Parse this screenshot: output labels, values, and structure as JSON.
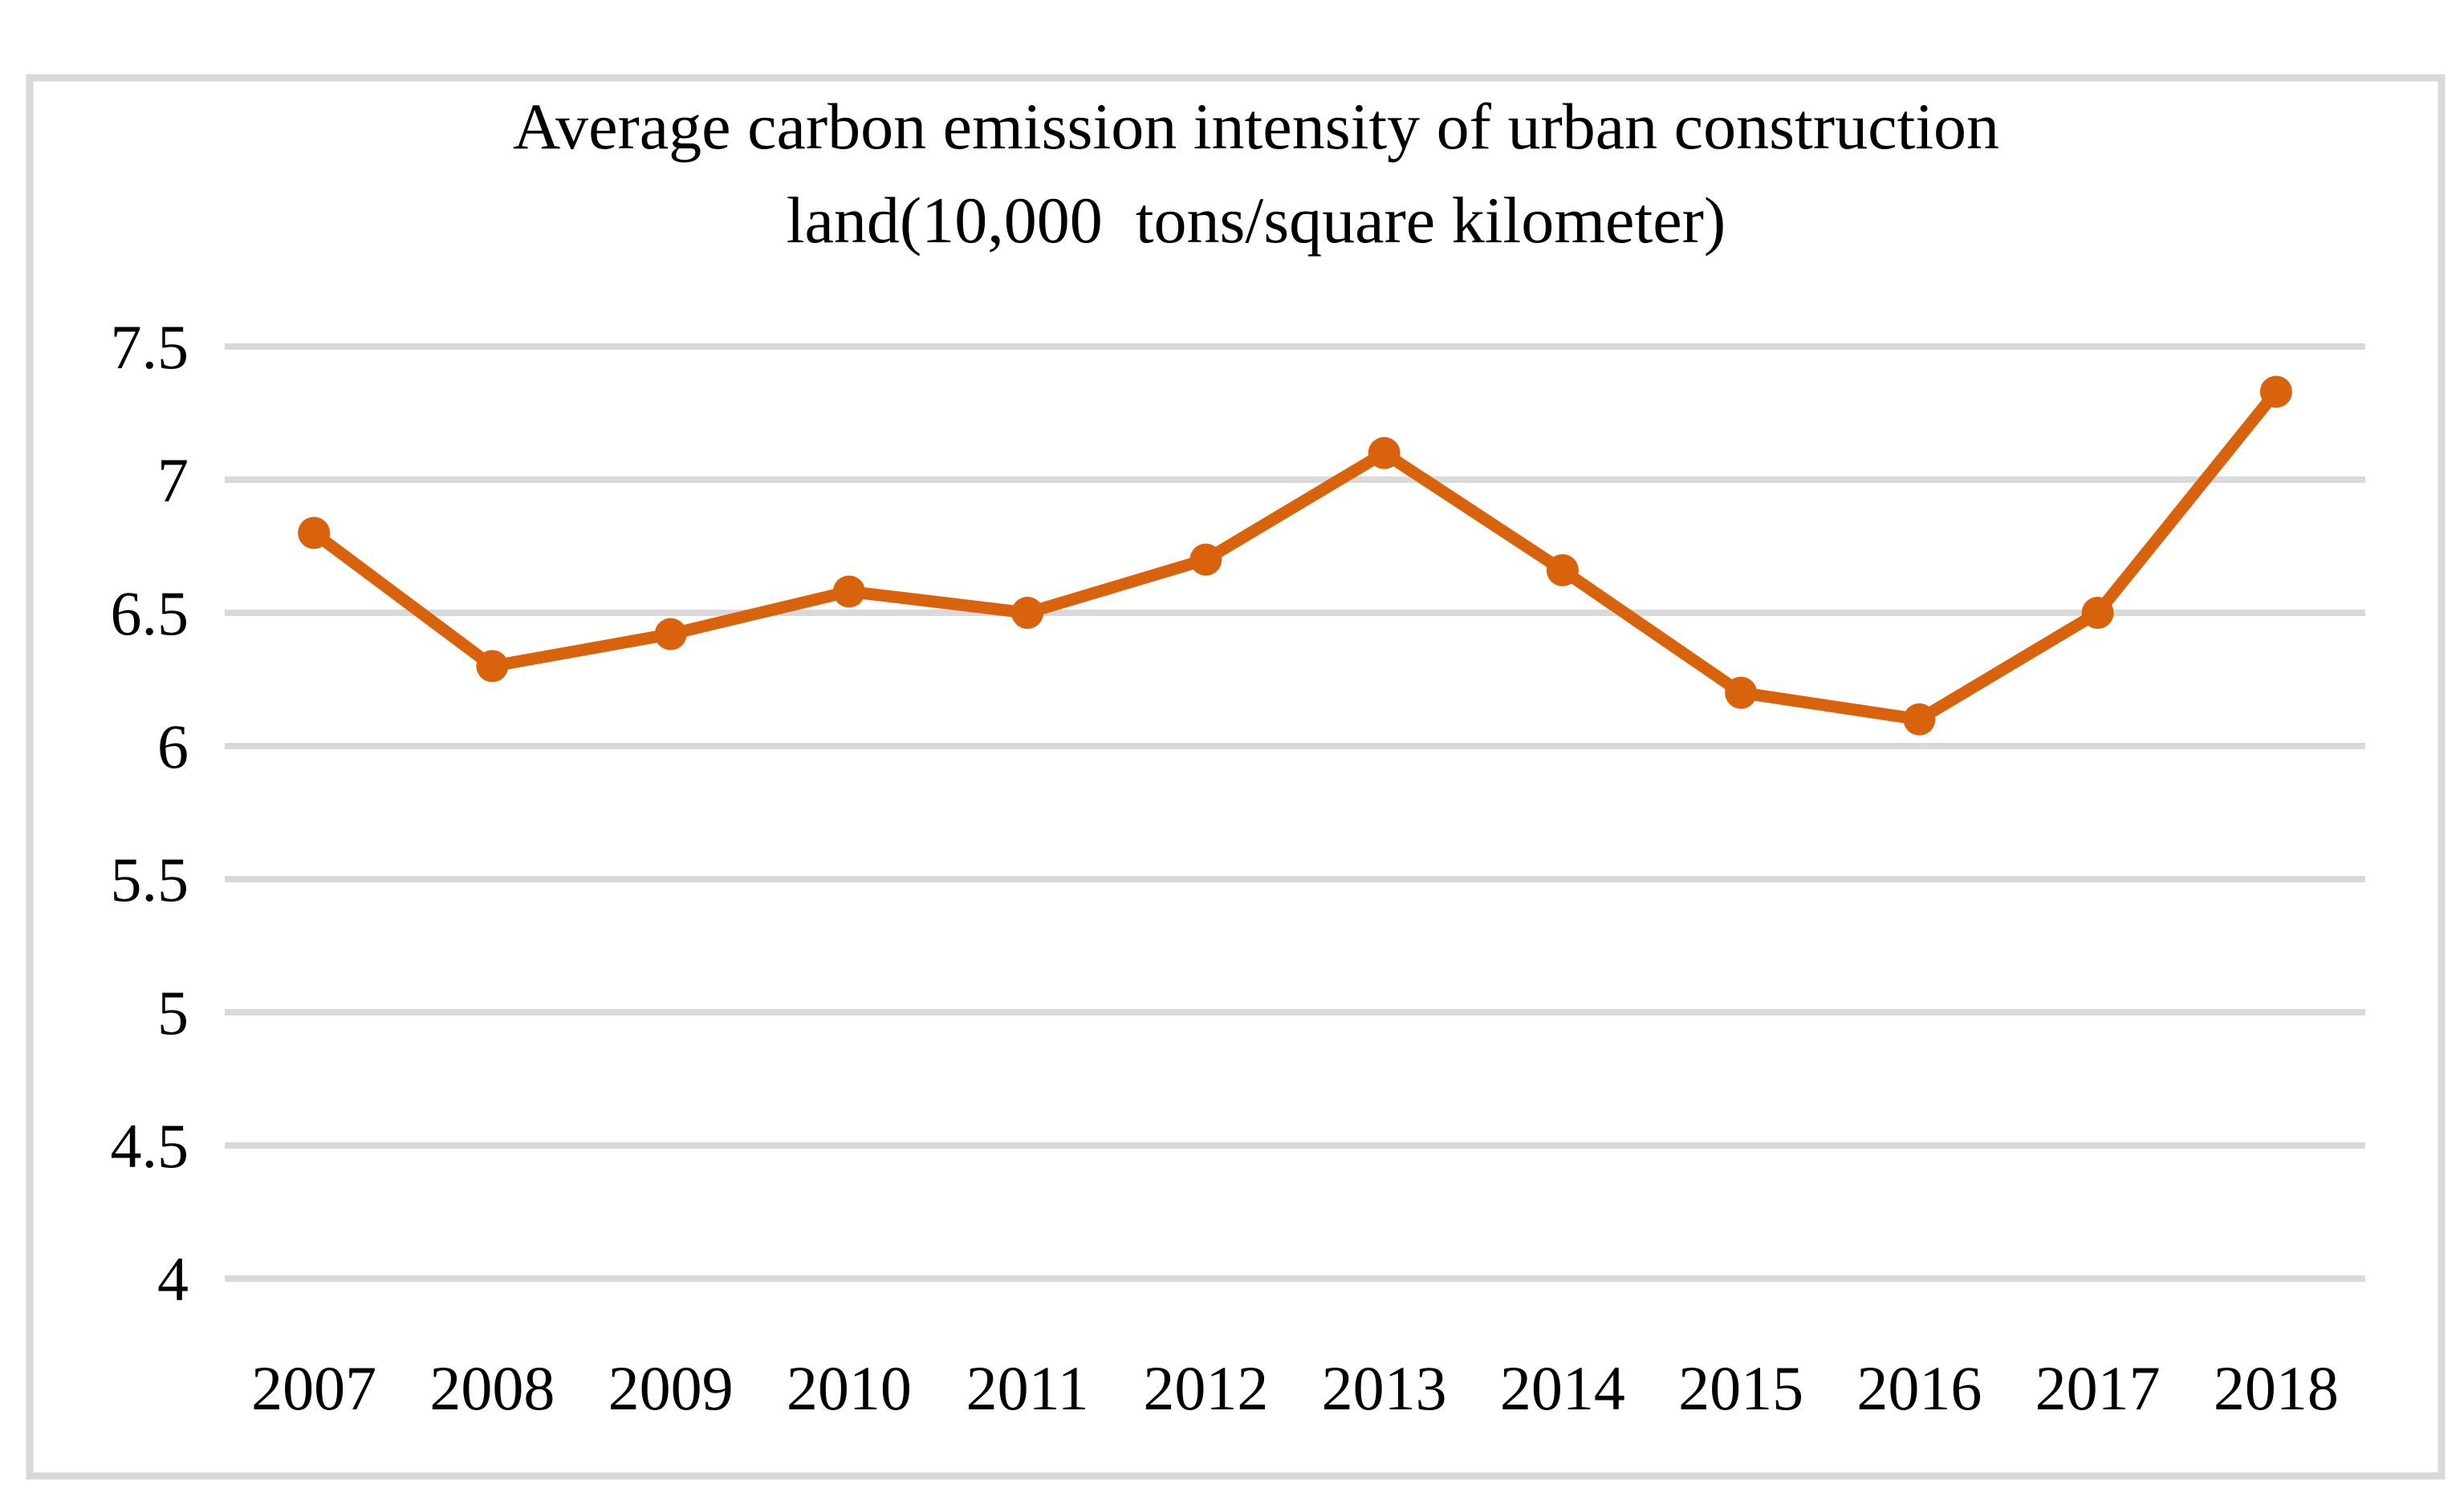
{
  "chart_data": {
    "type": "line",
    "title": "Average carbon emission intensity of urban construction land(10,000  tons/square kilometer)",
    "title_lines": [
      "Average carbon emission intensity of urban construction",
      "land(10,000  tons/square kilometer)"
    ],
    "categories": [
      "2007",
      "2008",
      "2009",
      "2010",
      "2011",
      "2012",
      "2013",
      "2014",
      "2015",
      "2016",
      "2017",
      "2018"
    ],
    "series": [
      {
        "name": "Average carbon emission intensity of urban construction land",
        "values": [
          6.8,
          6.3,
          6.42,
          6.58,
          6.5,
          6.7,
          7.1,
          6.66,
          6.2,
          6.1,
          6.5,
          7.33
        ]
      }
    ],
    "xlabel": "",
    "ylabel": "",
    "ylim": [
      4,
      7.5
    ],
    "yticks": [
      {
        "value": 7.5,
        "label": "7.5"
      },
      {
        "value": 7,
        "label": "7"
      },
      {
        "value": 6.5,
        "label": "6.5"
      },
      {
        "value": 6,
        "label": "6"
      },
      {
        "value": 5.5,
        "label": "5.5"
      },
      {
        "value": 5,
        "label": "5"
      },
      {
        "value": 4.5,
        "label": "4.5"
      },
      {
        "value": 4,
        "label": "4"
      }
    ],
    "grid": true,
    "legend_position": "none",
    "marker": "circle",
    "colors": {
      "line": "#D9620D",
      "marker": "#D9620D",
      "gridline": "#D9D9D9",
      "frame_border": "#D9D9D9",
      "background": "#FFFFFF",
      "text": "#000000"
    }
  }
}
